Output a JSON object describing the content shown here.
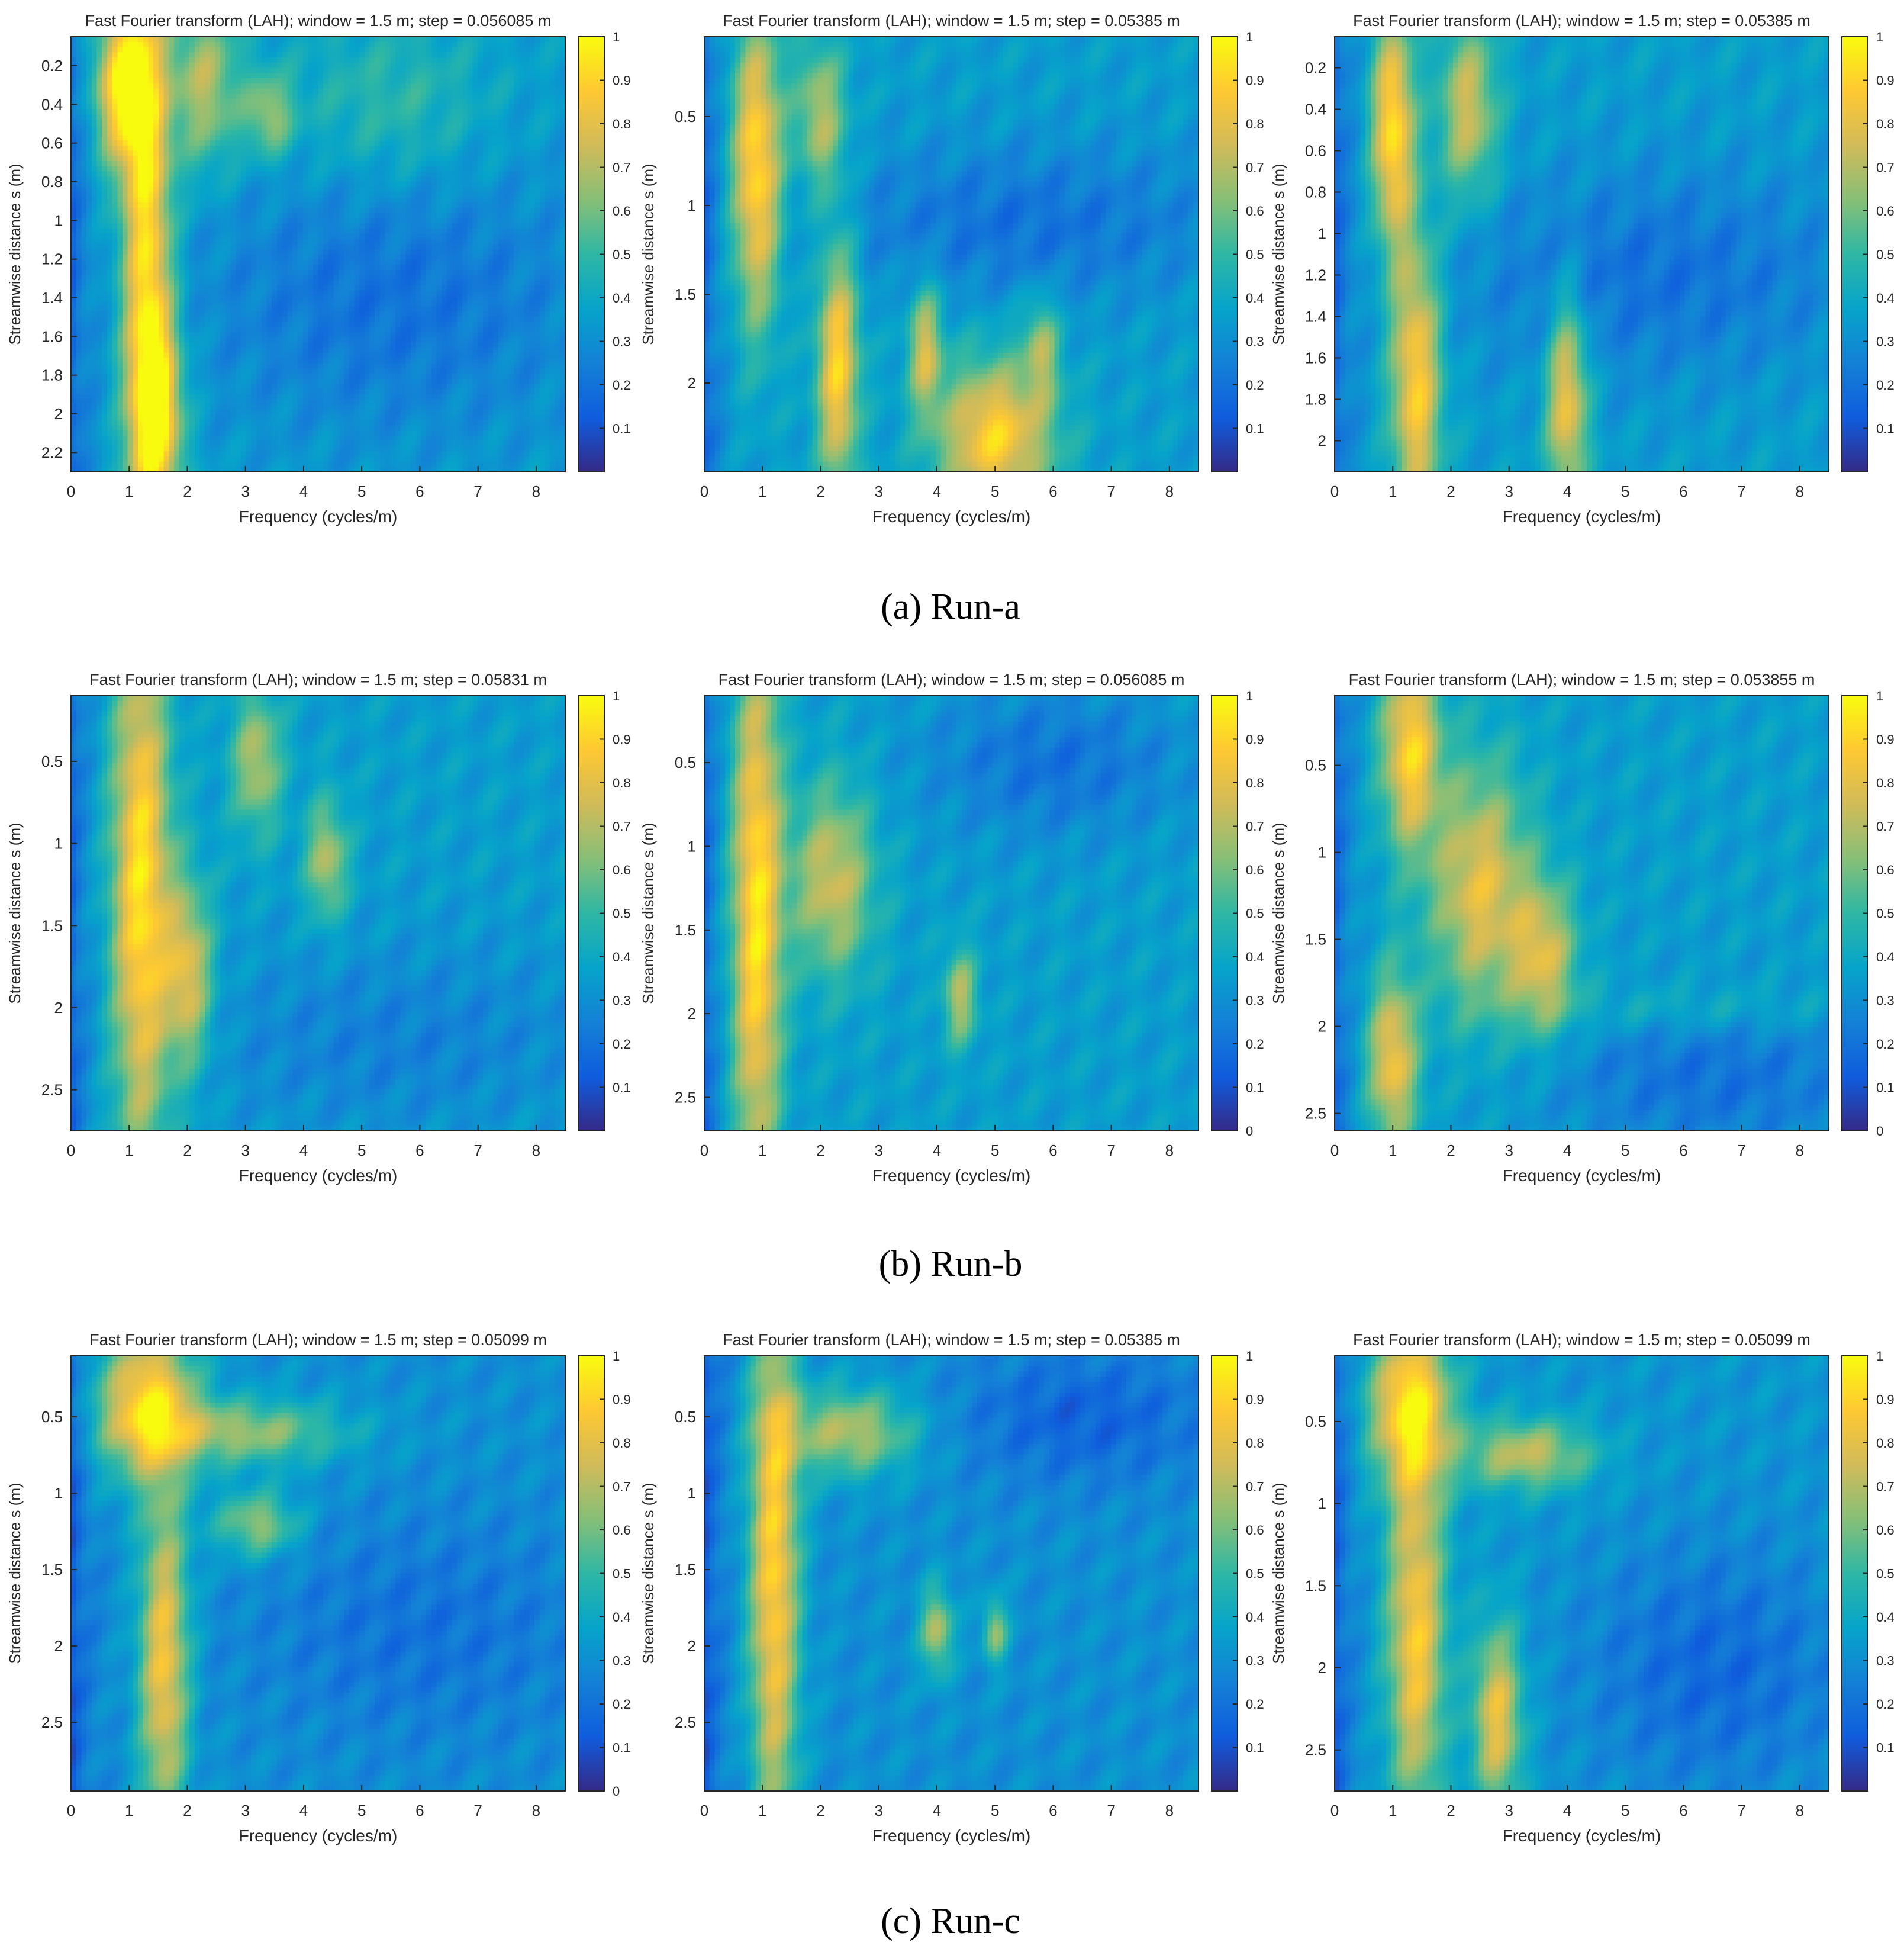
{
  "figure": {
    "xlabel": "Frequency (cycles/m)",
    "ylabel": "Streamwise distance s (m)",
    "captions": [
      "(a) Run-a",
      "(b) Run-b",
      "(c) Run-c"
    ]
  },
  "colors": {
    "colormap_parula": [
      "#352a87",
      "#0f5cdd",
      "#1481d6",
      "#06a4ca",
      "#2eb7a4",
      "#87bf77",
      "#d1bb59",
      "#fec832",
      "#f9fb0e"
    ],
    "caption_text": "#000000",
    "axis_text": "#262626"
  },
  "chart_data": [
    {
      "type": "heatmap",
      "run": "Run-a",
      "title": "Fast Fourier transform (LAH); window = 1.5 m; step = 0.056085 m",
      "xlabel": "Frequency (cycles/m)",
      "ylabel": "Streamwise distance s (m)",
      "xlim": [
        0,
        8.5
      ],
      "xticks": [
        0,
        1,
        2,
        3,
        4,
        5,
        6,
        7,
        8
      ],
      "ylim": [
        0.05,
        2.3
      ],
      "yticks": [
        0.2,
        0.4,
        0.6,
        0.8,
        1,
        1.2,
        1.4,
        1.6,
        1.8,
        2,
        2.2
      ],
      "ytick_labels": [
        "0.2",
        "0.4",
        "0.6",
        "0.8",
        "1",
        "1.2",
        "1.4",
        "1.6",
        "1.8",
        "2",
        "2.2"
      ],
      "colorbar": {
        "range": [
          0,
          1
        ],
        "ticks": [
          0.1,
          0.2,
          0.3,
          0.4,
          0.5,
          0.6,
          0.7,
          0.8,
          0.9,
          1
        ],
        "tick_labels": [
          "0.1",
          "0.2",
          "0.3",
          "0.4",
          "0.5",
          "0.6",
          "0.7",
          "0.8",
          "0.9",
          "1"
        ]
      },
      "background": 0.35,
      "features": [
        {
          "f": 0.9,
          "s": 0.3,
          "sf": 0.35,
          "ss": 0.3,
          "a": 0.6
        },
        {
          "f": 1.3,
          "s": 1.2,
          "sf": 0.3,
          "ss": 1.0,
          "a": 0.6
        },
        {
          "f": 1.5,
          "s": 2.0,
          "sf": 0.3,
          "ss": 0.35,
          "a": 0.5
        },
        {
          "f": 2.3,
          "s": 0.3,
          "sf": 0.4,
          "ss": 0.3,
          "a": 0.35
        },
        {
          "f": 3.4,
          "s": 0.45,
          "sf": 0.3,
          "ss": 0.15,
          "a": 0.3
        },
        {
          "f": 5.5,
          "s": 0.4,
          "sf": 1.2,
          "ss": 0.3,
          "a": 0.15
        },
        {
          "f": 5.5,
          "s": 1.4,
          "sf": 2.5,
          "ss": 0.5,
          "a": -0.15
        }
      ]
    },
    {
      "type": "heatmap",
      "run": "Run-a",
      "title": "Fast Fourier transform (LAH); window = 1.5 m; step = 0.05385 m",
      "xlabel": "Frequency (cycles/m)",
      "ylabel": "Streamwise distance s (m)",
      "xlim": [
        0,
        8.5
      ],
      "xticks": [
        0,
        1,
        2,
        3,
        4,
        5,
        6,
        7,
        8
      ],
      "ylim": [
        0.05,
        2.5
      ],
      "yticks": [
        0.5,
        1,
        1.5,
        2
      ],
      "ytick_labels": [
        "0.5",
        "1",
        "1.5",
        "2"
      ],
      "colorbar": {
        "range": [
          0,
          1
        ],
        "ticks": [
          0.1,
          0.2,
          0.3,
          0.4,
          0.5,
          0.6,
          0.7,
          0.8,
          0.9,
          1
        ],
        "tick_labels": [
          "0.1",
          "0.2",
          "0.3",
          "0.4",
          "0.5",
          "0.6",
          "0.7",
          "0.8",
          "0.9",
          "1"
        ]
      },
      "background": 0.35,
      "features": [
        {
          "f": 0.9,
          "s": 0.8,
          "sf": 0.3,
          "ss": 0.6,
          "a": 0.6
        },
        {
          "f": 2.0,
          "s": 0.5,
          "sf": 0.3,
          "ss": 0.3,
          "a": 0.35
        },
        {
          "f": 2.3,
          "s": 1.9,
          "sf": 0.25,
          "ss": 0.5,
          "a": 0.55
        },
        {
          "f": 3.8,
          "s": 1.8,
          "sf": 0.2,
          "ss": 0.25,
          "a": 0.4
        },
        {
          "f": 5.0,
          "s": 2.3,
          "sf": 0.7,
          "ss": 0.3,
          "a": 0.55
        },
        {
          "f": 5.8,
          "s": 1.8,
          "sf": 0.2,
          "ss": 0.2,
          "a": 0.3
        },
        {
          "f": 5.5,
          "s": 1.1,
          "sf": 2.5,
          "ss": 0.3,
          "a": -0.15
        }
      ]
    },
    {
      "type": "heatmap",
      "run": "Run-a",
      "title": "Fast Fourier transform (LAH); window = 1.5 m; step = 0.05385 m",
      "xlabel": "Frequency (cycles/m)",
      "ylabel": "Streamwise distance s (m)",
      "xlim": [
        0,
        8.5
      ],
      "xticks": [
        0,
        1,
        2,
        3,
        4,
        5,
        6,
        7,
        8
      ],
      "ylim": [
        0.05,
        2.15
      ],
      "yticks": [
        0.2,
        0.4,
        0.6,
        0.8,
        1,
        1.2,
        1.4,
        1.6,
        1.8,
        2
      ],
      "ytick_labels": [
        "0.2",
        "0.4",
        "0.6",
        "0.8",
        "1",
        "1.2",
        "1.4",
        "1.6",
        "1.8",
        "2"
      ],
      "colorbar": {
        "range": [
          0,
          1
        ],
        "ticks": [
          0.1,
          0.2,
          0.3,
          0.4,
          0.5,
          0.6,
          0.7,
          0.8,
          0.9,
          1
        ],
        "tick_labels": [
          "0.1",
          "0.2",
          "0.3",
          "0.4",
          "0.5",
          "0.6",
          "0.7",
          "0.8",
          "0.9",
          "1"
        ]
      },
      "background": 0.35,
      "features": [
        {
          "f": 1.0,
          "s": 0.5,
          "sf": 0.25,
          "ss": 0.4,
          "a": 0.6
        },
        {
          "f": 2.3,
          "s": 0.4,
          "sf": 0.35,
          "ss": 0.3,
          "a": 0.4
        },
        {
          "f": 1.4,
          "s": 1.7,
          "sf": 0.3,
          "ss": 0.5,
          "a": 0.55
        },
        {
          "f": 4.0,
          "s": 1.8,
          "sf": 0.25,
          "ss": 0.35,
          "a": 0.5
        },
        {
          "f": 5.5,
          "s": 1.2,
          "sf": 2.5,
          "ss": 0.35,
          "a": -0.15
        }
      ]
    },
    {
      "type": "heatmap",
      "run": "Run-b",
      "title": "Fast Fourier transform (LAH); window = 1.5 m; step = 0.05831 m",
      "xlabel": "Frequency (cycles/m)",
      "ylabel": "Streamwise distance s (m)",
      "xlim": [
        0,
        8.5
      ],
      "xticks": [
        0,
        1,
        2,
        3,
        4,
        5,
        6,
        7,
        8
      ],
      "ylim": [
        0.1,
        2.75
      ],
      "yticks": [
        0.5,
        1,
        1.5,
        2,
        2.5
      ],
      "ytick_labels": [
        "0.5",
        "1",
        "1.5",
        "2",
        "2.5"
      ],
      "colorbar": {
        "range": [
          0,
          1
        ],
        "ticks": [
          0.1,
          0.2,
          0.3,
          0.4,
          0.5,
          0.6,
          0.7,
          0.8,
          0.9,
          1
        ],
        "tick_labels": [
          "0.1",
          "0.2",
          "0.3",
          "0.4",
          "0.5",
          "0.6",
          "0.7",
          "0.8",
          "0.9",
          "1"
        ]
      },
      "background": 0.35,
      "features": [
        {
          "f": 1.2,
          "s": 1.3,
          "sf": 0.35,
          "ss": 1.2,
          "a": 0.6
        },
        {
          "f": 2.0,
          "s": 1.8,
          "sf": 0.3,
          "ss": 0.4,
          "a": 0.45
        },
        {
          "f": 3.2,
          "s": 0.5,
          "sf": 0.3,
          "ss": 0.3,
          "a": 0.35
        },
        {
          "f": 4.4,
          "s": 1.1,
          "sf": 0.25,
          "ss": 0.25,
          "a": 0.35
        },
        {
          "f": 5.5,
          "s": 2.2,
          "sf": 2.5,
          "ss": 0.4,
          "a": -0.1
        }
      ]
    },
    {
      "type": "heatmap",
      "run": "Run-b",
      "title": "Fast Fourier transform (LAH); window = 1.5 m; step = 0.056085 m",
      "xlabel": "Frequency (cycles/m)",
      "ylabel": "Streamwise distance s (m)",
      "xlim": [
        0,
        8.5
      ],
      "xticks": [
        0,
        1,
        2,
        3,
        4,
        5,
        6,
        7,
        8
      ],
      "ylim": [
        0.1,
        2.7
      ],
      "yticks": [
        0.5,
        1,
        1.5,
        2,
        2.5
      ],
      "ytick_labels": [
        "0.5",
        "1",
        "1.5",
        "2",
        "2.5"
      ],
      "colorbar": {
        "range": [
          0,
          1
        ],
        "ticks": [
          0,
          0.1,
          0.2,
          0.3,
          0.4,
          0.5,
          0.6,
          0.7,
          0.8,
          0.9,
          1
        ],
        "tick_labels": [
          "0",
          "0.1",
          "0.2",
          "0.3",
          "0.4",
          "0.5",
          "0.6",
          "0.7",
          "0.8",
          "0.9",
          "1"
        ]
      },
      "background": 0.35,
      "features": [
        {
          "f": 0.9,
          "s": 1.4,
          "sf": 0.3,
          "ss": 1.2,
          "a": 0.6
        },
        {
          "f": 2.2,
          "s": 1.2,
          "sf": 0.5,
          "ss": 0.4,
          "a": 0.4
        },
        {
          "f": 4.4,
          "s": 1.9,
          "sf": 0.2,
          "ss": 0.2,
          "a": 0.35
        },
        {
          "f": 6.0,
          "s": 0.5,
          "sf": 1.5,
          "ss": 0.3,
          "a": -0.15
        }
      ]
    },
    {
      "type": "heatmap",
      "run": "Run-b",
      "title": "Fast Fourier transform (LAH); window = 1.5 m; step = 0.053855 m",
      "xlabel": "Frequency (cycles/m)",
      "ylabel": "Streamwise distance s (m)",
      "xlim": [
        0,
        8.5
      ],
      "xticks": [
        0,
        1,
        2,
        3,
        4,
        5,
        6,
        7,
        8
      ],
      "ylim": [
        0.1,
        2.6
      ],
      "yticks": [
        0.5,
        1,
        1.5,
        2,
        2.5
      ],
      "ytick_labels": [
        "0.5",
        "1",
        "1.5",
        "2",
        "2.5"
      ],
      "colorbar": {
        "range": [
          0,
          1
        ],
        "ticks": [
          0,
          0.1,
          0.2,
          0.3,
          0.4,
          0.5,
          0.6,
          0.7,
          0.8,
          0.9,
          1
        ],
        "tick_labels": [
          "0",
          "0.1",
          "0.2",
          "0.3",
          "0.4",
          "0.5",
          "0.6",
          "0.7",
          "0.8",
          "0.9",
          "1"
        ]
      },
      "background": 0.35,
      "features": [
        {
          "f": 1.3,
          "s": 0.4,
          "sf": 0.35,
          "ss": 0.4,
          "a": 0.55
        },
        {
          "f": 2.5,
          "s": 1.2,
          "sf": 0.6,
          "ss": 0.5,
          "a": 0.45
        },
        {
          "f": 3.6,
          "s": 1.6,
          "sf": 0.4,
          "ss": 0.3,
          "a": 0.4
        },
        {
          "f": 1.0,
          "s": 2.2,
          "sf": 0.3,
          "ss": 0.35,
          "a": 0.5
        },
        {
          "f": 6.0,
          "s": 1.9,
          "sf": 2.0,
          "ss": 0.1,
          "a": 0.1
        },
        {
          "f": 6.5,
          "s": 2.3,
          "sf": 2.0,
          "ss": 0.3,
          "a": -0.15
        }
      ]
    },
    {
      "type": "heatmap",
      "run": "Run-c",
      "title": "Fast Fourier transform (LAH); window = 1.5 m; step = 0.05099 m",
      "xlabel": "Frequency (cycles/m)",
      "ylabel": "Streamwise distance s (m)",
      "xlim": [
        0,
        8.5
      ],
      "xticks": [
        0,
        1,
        2,
        3,
        4,
        5,
        6,
        7,
        8
      ],
      "ylim": [
        0.1,
        2.95
      ],
      "yticks": [
        0.5,
        1,
        1.5,
        2,
        2.5
      ],
      "ytick_labels": [
        "0.5",
        "1",
        "1.5",
        "2",
        "2.5"
      ],
      "colorbar": {
        "range": [
          0,
          1
        ],
        "ticks": [
          0,
          0.1,
          0.2,
          0.3,
          0.4,
          0.5,
          0.6,
          0.7,
          0.8,
          0.9,
          1
        ],
        "tick_labels": [
          "0",
          "0.1",
          "0.2",
          "0.3",
          "0.4",
          "0.5",
          "0.6",
          "0.7",
          "0.8",
          "0.9",
          "1"
        ]
      },
      "background": 0.3,
      "features": [
        {
          "f": 1.3,
          "s": 0.4,
          "sf": 0.6,
          "ss": 0.35,
          "a": 0.6
        },
        {
          "f": 3.0,
          "s": 0.6,
          "sf": 1.2,
          "ss": 0.15,
          "a": 0.35
        },
        {
          "f": 1.6,
          "s": 2.1,
          "sf": 0.3,
          "ss": 0.8,
          "a": 0.55
        },
        {
          "f": 3.2,
          "s": 1.2,
          "sf": 0.5,
          "ss": 0.15,
          "a": 0.35
        },
        {
          "f": 6.0,
          "s": 1.9,
          "sf": 2.0,
          "ss": 0.5,
          "a": -0.1
        }
      ]
    },
    {
      "type": "heatmap",
      "run": "Run-c",
      "title": "Fast Fourier transform (LAH); window = 1.5 m; step = 0.05385 m",
      "xlabel": "Frequency (cycles/m)",
      "ylabel": "Streamwise distance s (m)",
      "xlim": [
        0,
        8.5
      ],
      "xticks": [
        0,
        1,
        2,
        3,
        4,
        5,
        6,
        7,
        8
      ],
      "ylim": [
        0.1,
        2.95
      ],
      "yticks": [
        0.5,
        1,
        1.5,
        2,
        2.5
      ],
      "ytick_labels": [
        "0.5",
        "1",
        "1.5",
        "2",
        "2.5"
      ],
      "colorbar": {
        "range": [
          0,
          1
        ],
        "ticks": [
          0.1,
          0.2,
          0.3,
          0.4,
          0.5,
          0.6,
          0.7,
          0.8,
          0.9,
          1
        ],
        "tick_labels": [
          "0.1",
          "0.2",
          "0.3",
          "0.4",
          "0.5",
          "0.6",
          "0.7",
          "0.8",
          "0.9",
          "1"
        ]
      },
      "background": 0.3,
      "features": [
        {
          "f": 1.2,
          "s": 1.5,
          "sf": 0.3,
          "ss": 1.3,
          "a": 0.6
        },
        {
          "f": 2.5,
          "s": 0.6,
          "sf": 0.8,
          "ss": 0.2,
          "a": 0.4
        },
        {
          "f": 4.0,
          "s": 1.9,
          "sf": 0.2,
          "ss": 0.2,
          "a": 0.4
        },
        {
          "f": 5.0,
          "s": 1.9,
          "sf": 0.15,
          "ss": 0.15,
          "a": 0.35
        },
        {
          "f": 6.5,
          "s": 0.5,
          "sf": 1.5,
          "ss": 0.3,
          "a": -0.15
        }
      ]
    },
    {
      "type": "heatmap",
      "run": "Run-c",
      "title": "Fast Fourier transform (LAH); window = 1.5 m; step = 0.05099 m",
      "xlabel": "Frequency (cycles/m)",
      "ylabel": "Streamwise distance s (m)",
      "xlim": [
        0,
        8.5
      ],
      "xticks": [
        0,
        1,
        2,
        3,
        4,
        5,
        6,
        7,
        8
      ],
      "ylim": [
        0.1,
        2.75
      ],
      "yticks": [
        0.5,
        1,
        1.5,
        2,
        2.5
      ],
      "ytick_labels": [
        "0.5",
        "1",
        "1.5",
        "2",
        "2.5"
      ],
      "colorbar": {
        "range": [
          0,
          1
        ],
        "ticks": [
          0.1,
          0.2,
          0.3,
          0.4,
          0.5,
          0.6,
          0.7,
          0.8,
          0.9,
          1
        ],
        "tick_labels": [
          "0.1",
          "0.2",
          "0.3",
          "0.4",
          "0.5",
          "0.6",
          "0.7",
          "0.8",
          "0.9",
          "1"
        ]
      },
      "background": 0.32,
      "features": [
        {
          "f": 1.3,
          "s": 0.4,
          "sf": 0.5,
          "ss": 0.35,
          "a": 0.6
        },
        {
          "f": 3.3,
          "s": 0.7,
          "sf": 0.8,
          "ss": 0.15,
          "a": 0.4
        },
        {
          "f": 1.4,
          "s": 1.8,
          "sf": 0.35,
          "ss": 0.8,
          "a": 0.55
        },
        {
          "f": 2.8,
          "s": 2.3,
          "sf": 0.3,
          "ss": 0.4,
          "a": 0.5
        },
        {
          "f": 6.5,
          "s": 2.0,
          "sf": 1.5,
          "ss": 0.5,
          "a": -0.15
        }
      ]
    }
  ]
}
